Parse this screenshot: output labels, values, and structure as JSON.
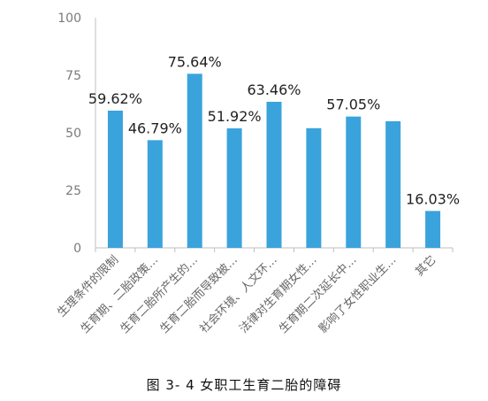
{
  "chart_data": {
    "type": "bar",
    "categories": [
      "生理条件的限制",
      "生育期、二胎政策…",
      "生育二胎所产生的…",
      "生育二胎而导致被…",
      "社会环境、人文环…",
      "法律对生育期女性…",
      "生育期二次延长中…",
      "影响了女性职业生…",
      "其它"
    ],
    "values": [
      59.62,
      46.79,
      75.64,
      51.92,
      63.46,
      52,
      57.05,
      55,
      16.03
    ],
    "data_labels": [
      "59.62%",
      "46.79%",
      "75.64%",
      "51.92%",
      "63.46%",
      "",
      "57.05%",
      "",
      "16.03%"
    ],
    "y_ticks": [
      0,
      25,
      50,
      75,
      100
    ],
    "ylim": [
      0,
      100
    ],
    "bar_color": "#3aa3dc",
    "axis_color": "#bfbfbf",
    "grid": false
  },
  "caption": "图 3- 4 女职工生育二胎的障碍"
}
